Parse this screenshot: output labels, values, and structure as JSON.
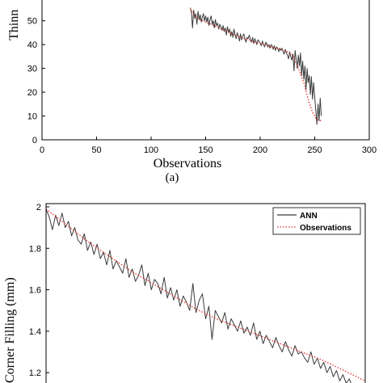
{
  "colors": {
    "ann": "#3a3a3a",
    "obs": "#e0302a",
    "axis": "#000000"
  },
  "chart_data": [
    {
      "type": "line",
      "ylabel": "Thinn",
      "xlabel": "Observations",
      "caption": "(a)",
      "xlim": [
        0,
        300
      ],
      "ylim": [
        0,
        55
      ],
      "xticks": [
        0,
        50,
        100,
        150,
        200,
        250,
        300
      ],
      "yticks": [
        0,
        10,
        20,
        30,
        40,
        50
      ],
      "series": [
        {
          "style": "solid",
          "x": [
            136,
            137,
            138,
            139,
            140,
            141,
            142,
            143,
            144,
            145,
            146,
            147,
            148,
            149,
            150,
            151,
            152,
            153,
            154,
            155,
            156,
            157,
            158,
            159,
            160,
            161,
            162,
            163,
            164,
            165,
            166,
            167,
            168,
            169,
            170,
            171,
            172,
            173,
            174,
            175,
            176,
            177,
            178,
            179,
            180,
            181,
            182,
            183,
            184,
            185,
            186,
            187,
            188,
            189,
            190,
            191,
            192,
            193,
            194,
            195,
            196,
            197,
            198,
            199,
            200,
            201,
            202,
            203,
            204,
            205,
            206,
            207,
            208,
            209,
            210,
            211,
            212,
            213,
            214,
            215,
            216,
            217,
            218,
            219,
            220,
            221,
            222,
            223,
            224,
            225,
            226,
            227,
            228,
            229,
            230,
            231,
            232,
            233,
            234,
            235,
            236,
            237,
            238,
            239,
            240,
            241,
            242,
            243,
            244,
            245,
            246,
            247,
            248,
            249,
            250,
            251,
            252,
            253,
            254,
            255,
            256
          ],
          "values": [
            55.5,
            53.5,
            47.0,
            54.5,
            51.0,
            53.0,
            48.5,
            54.0,
            50.5,
            52.5,
            49.5,
            51.5,
            53.0,
            50.0,
            52.0,
            49.5,
            51.5,
            48.0,
            50.5,
            52.0,
            48.5,
            50.0,
            47.0,
            50.5,
            48.0,
            49.0,
            46.5,
            48.5,
            47.5,
            46.0,
            48.0,
            45.5,
            47.0,
            44.0,
            47.5,
            45.0,
            46.5,
            43.5,
            45.5,
            43.0,
            46.5,
            44.0,
            42.5,
            45.0,
            43.5,
            41.5,
            44.5,
            42.0,
            43.5,
            44.5,
            42.5,
            41.0,
            43.0,
            42.5,
            44.0,
            42.0,
            41.0,
            43.0,
            40.5,
            42.5,
            41.5,
            40.0,
            42.0,
            41.5,
            40.5,
            39.5,
            41.5,
            40.0,
            39.0,
            41.0,
            40.5,
            39.0,
            40.0,
            38.5,
            40.0,
            39.5,
            38.0,
            39.5,
            37.5,
            39.0,
            38.5,
            37.0,
            38.5,
            37.5,
            38.5,
            37.0,
            36.0,
            38.0,
            36.5,
            35.5,
            34.0,
            37.0,
            35.0,
            33.5,
            36.0,
            29.0,
            37.5,
            34.0,
            30.0,
            35.5,
            31.0,
            36.5,
            27.0,
            33.0,
            25.5,
            31.0,
            21.0,
            30.0,
            24.0,
            27.0,
            19.0,
            26.5,
            17.0,
            24.0,
            18.0,
            12.0,
            6.5,
            15.0,
            8.0,
            17.5,
            10.0
          ],
          "label": "ANN"
        },
        {
          "style": "dotted",
          "x": [
            136,
            140,
            145,
            150,
            155,
            160,
            165,
            170,
            175,
            180,
            185,
            190,
            195,
            200,
            205,
            210,
            215,
            220,
            225,
            230,
            235,
            240,
            244,
            248,
            252,
            256
          ],
          "values": [
            55.0,
            52.0,
            50.5,
            49.5,
            48.5,
            47.5,
            46.5,
            45.5,
            44.5,
            43.5,
            42.5,
            42.0,
            41.0,
            40.5,
            40.0,
            39.0,
            38.5,
            38.0,
            37.0,
            35.5,
            30.0,
            24.0,
            17.0,
            11.5,
            8.5,
            8.0
          ],
          "label": "Observations"
        }
      ]
    },
    {
      "type": "line",
      "ylabel": "Corner Filling (mm)",
      "xlim": [
        0,
        300
      ],
      "ylim": [
        1.15,
        2.0
      ],
      "yticks": [
        1.2,
        1.4,
        1.6,
        1.8,
        2
      ],
      "legend": {
        "placement": "top-right",
        "entries": [
          "ANN",
          "Observations"
        ]
      },
      "series": [
        {
          "style": "solid",
          "name": "ANN",
          "x": [
            0,
            3,
            6,
            9,
            12,
            15,
            18,
            21,
            24,
            27,
            30,
            33,
            36,
            39,
            42,
            45,
            48,
            51,
            54,
            57,
            60,
            63,
            66,
            69,
            72,
            75,
            78,
            81,
            84,
            87,
            90,
            93,
            96,
            99,
            102,
            105,
            108,
            111,
            114,
            117,
            120,
            123,
            126,
            129,
            132,
            135,
            138,
            141,
            144,
            147,
            150,
            153,
            156,
            159,
            162,
            165,
            168,
            171,
            174,
            177,
            180,
            183,
            186,
            189,
            192,
            195,
            198,
            201,
            204,
            207,
            210,
            213,
            216,
            219,
            222,
            225,
            228,
            231,
            234,
            237,
            240,
            243,
            246,
            249,
            252,
            255,
            258,
            261,
            264,
            267,
            270,
            273,
            276,
            279,
            282,
            285,
            288,
            291
          ],
          "values": [
            1.99,
            1.95,
            1.89,
            1.96,
            1.91,
            1.97,
            1.9,
            1.93,
            1.86,
            1.9,
            1.84,
            1.82,
            1.87,
            1.79,
            1.83,
            1.77,
            1.82,
            1.75,
            1.78,
            1.72,
            1.79,
            1.7,
            1.74,
            1.71,
            1.68,
            1.75,
            1.66,
            1.7,
            1.64,
            1.67,
            1.72,
            1.62,
            1.68,
            1.6,
            1.65,
            1.63,
            1.58,
            1.66,
            1.56,
            1.61,
            1.55,
            1.6,
            1.52,
            1.57,
            1.54,
            1.5,
            1.63,
            1.49,
            1.55,
            1.58,
            1.46,
            1.52,
            1.36,
            1.5,
            1.47,
            1.44,
            1.49,
            1.41,
            1.46,
            1.43,
            1.4,
            1.45,
            1.39,
            1.42,
            1.38,
            1.44,
            1.36,
            1.4,
            1.34,
            1.38,
            1.35,
            1.32,
            1.37,
            1.33,
            1.3,
            1.35,
            1.31,
            1.28,
            1.33,
            1.29,
            1.3,
            1.27,
            1.25,
            1.3,
            1.24,
            1.27,
            1.22,
            1.25,
            1.2,
            1.23,
            1.18,
            1.21,
            1.16,
            1.19,
            1.15,
            1.17,
            1.13,
            1.15
          ],
          "label": "ANN"
        },
        {
          "style": "dotted",
          "name": "Observations",
          "x": [
            0,
            20,
            40,
            60,
            80,
            100,
            120,
            140,
            160,
            180,
            200,
            220,
            240,
            260,
            280,
            300
          ],
          "values": [
            1.99,
            1.91,
            1.83,
            1.76,
            1.69,
            1.63,
            1.57,
            1.51,
            1.46,
            1.42,
            1.38,
            1.34,
            1.3,
            1.26,
            1.21,
            1.16
          ],
          "label": "Observations"
        }
      ]
    }
  ]
}
